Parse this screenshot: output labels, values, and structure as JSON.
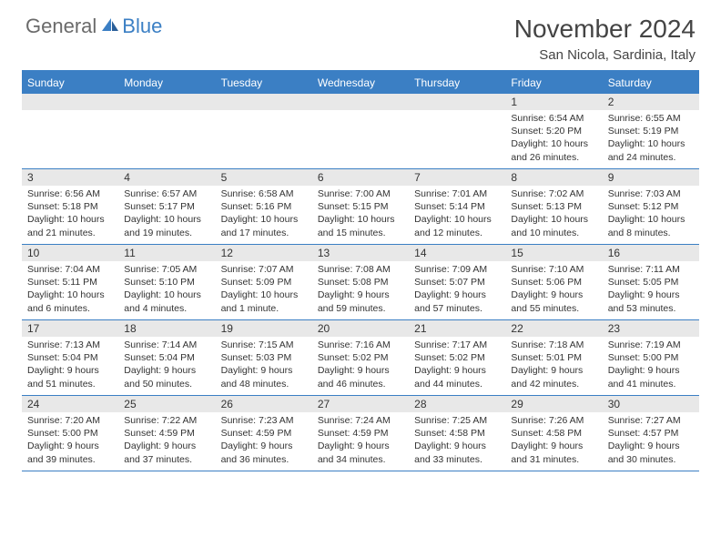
{
  "logo": {
    "general": "General",
    "blue": "Blue"
  },
  "title": "November 2024",
  "location": "San Nicola, Sardinia, Italy",
  "colors": {
    "accent": "#3b7fc4",
    "header_gray": "#e8e8e8",
    "text": "#333333",
    "logo_gray": "#6a6a6a"
  },
  "weekdays": [
    "Sunday",
    "Monday",
    "Tuesday",
    "Wednesday",
    "Thursday",
    "Friday",
    "Saturday"
  ],
  "weeks": [
    [
      {
        "n": "",
        "sr": "",
        "ss": "",
        "dl": ""
      },
      {
        "n": "",
        "sr": "",
        "ss": "",
        "dl": ""
      },
      {
        "n": "",
        "sr": "",
        "ss": "",
        "dl": ""
      },
      {
        "n": "",
        "sr": "",
        "ss": "",
        "dl": ""
      },
      {
        "n": "",
        "sr": "",
        "ss": "",
        "dl": ""
      },
      {
        "n": "1",
        "sr": "Sunrise: 6:54 AM",
        "ss": "Sunset: 5:20 PM",
        "dl": "Daylight: 10 hours and 26 minutes."
      },
      {
        "n": "2",
        "sr": "Sunrise: 6:55 AM",
        "ss": "Sunset: 5:19 PM",
        "dl": "Daylight: 10 hours and 24 minutes."
      }
    ],
    [
      {
        "n": "3",
        "sr": "Sunrise: 6:56 AM",
        "ss": "Sunset: 5:18 PM",
        "dl": "Daylight: 10 hours and 21 minutes."
      },
      {
        "n": "4",
        "sr": "Sunrise: 6:57 AM",
        "ss": "Sunset: 5:17 PM",
        "dl": "Daylight: 10 hours and 19 minutes."
      },
      {
        "n": "5",
        "sr": "Sunrise: 6:58 AM",
        "ss": "Sunset: 5:16 PM",
        "dl": "Daylight: 10 hours and 17 minutes."
      },
      {
        "n": "6",
        "sr": "Sunrise: 7:00 AM",
        "ss": "Sunset: 5:15 PM",
        "dl": "Daylight: 10 hours and 15 minutes."
      },
      {
        "n": "7",
        "sr": "Sunrise: 7:01 AM",
        "ss": "Sunset: 5:14 PM",
        "dl": "Daylight: 10 hours and 12 minutes."
      },
      {
        "n": "8",
        "sr": "Sunrise: 7:02 AM",
        "ss": "Sunset: 5:13 PM",
        "dl": "Daylight: 10 hours and 10 minutes."
      },
      {
        "n": "9",
        "sr": "Sunrise: 7:03 AM",
        "ss": "Sunset: 5:12 PM",
        "dl": "Daylight: 10 hours and 8 minutes."
      }
    ],
    [
      {
        "n": "10",
        "sr": "Sunrise: 7:04 AM",
        "ss": "Sunset: 5:11 PM",
        "dl": "Daylight: 10 hours and 6 minutes."
      },
      {
        "n": "11",
        "sr": "Sunrise: 7:05 AM",
        "ss": "Sunset: 5:10 PM",
        "dl": "Daylight: 10 hours and 4 minutes."
      },
      {
        "n": "12",
        "sr": "Sunrise: 7:07 AM",
        "ss": "Sunset: 5:09 PM",
        "dl": "Daylight: 10 hours and 1 minute."
      },
      {
        "n": "13",
        "sr": "Sunrise: 7:08 AM",
        "ss": "Sunset: 5:08 PM",
        "dl": "Daylight: 9 hours and 59 minutes."
      },
      {
        "n": "14",
        "sr": "Sunrise: 7:09 AM",
        "ss": "Sunset: 5:07 PM",
        "dl": "Daylight: 9 hours and 57 minutes."
      },
      {
        "n": "15",
        "sr": "Sunrise: 7:10 AM",
        "ss": "Sunset: 5:06 PM",
        "dl": "Daylight: 9 hours and 55 minutes."
      },
      {
        "n": "16",
        "sr": "Sunrise: 7:11 AM",
        "ss": "Sunset: 5:05 PM",
        "dl": "Daylight: 9 hours and 53 minutes."
      }
    ],
    [
      {
        "n": "17",
        "sr": "Sunrise: 7:13 AM",
        "ss": "Sunset: 5:04 PM",
        "dl": "Daylight: 9 hours and 51 minutes."
      },
      {
        "n": "18",
        "sr": "Sunrise: 7:14 AM",
        "ss": "Sunset: 5:04 PM",
        "dl": "Daylight: 9 hours and 50 minutes."
      },
      {
        "n": "19",
        "sr": "Sunrise: 7:15 AM",
        "ss": "Sunset: 5:03 PM",
        "dl": "Daylight: 9 hours and 48 minutes."
      },
      {
        "n": "20",
        "sr": "Sunrise: 7:16 AM",
        "ss": "Sunset: 5:02 PM",
        "dl": "Daylight: 9 hours and 46 minutes."
      },
      {
        "n": "21",
        "sr": "Sunrise: 7:17 AM",
        "ss": "Sunset: 5:02 PM",
        "dl": "Daylight: 9 hours and 44 minutes."
      },
      {
        "n": "22",
        "sr": "Sunrise: 7:18 AM",
        "ss": "Sunset: 5:01 PM",
        "dl": "Daylight: 9 hours and 42 minutes."
      },
      {
        "n": "23",
        "sr": "Sunrise: 7:19 AM",
        "ss": "Sunset: 5:00 PM",
        "dl": "Daylight: 9 hours and 41 minutes."
      }
    ],
    [
      {
        "n": "24",
        "sr": "Sunrise: 7:20 AM",
        "ss": "Sunset: 5:00 PM",
        "dl": "Daylight: 9 hours and 39 minutes."
      },
      {
        "n": "25",
        "sr": "Sunrise: 7:22 AM",
        "ss": "Sunset: 4:59 PM",
        "dl": "Daylight: 9 hours and 37 minutes."
      },
      {
        "n": "26",
        "sr": "Sunrise: 7:23 AM",
        "ss": "Sunset: 4:59 PM",
        "dl": "Daylight: 9 hours and 36 minutes."
      },
      {
        "n": "27",
        "sr": "Sunrise: 7:24 AM",
        "ss": "Sunset: 4:59 PM",
        "dl": "Daylight: 9 hours and 34 minutes."
      },
      {
        "n": "28",
        "sr": "Sunrise: 7:25 AM",
        "ss": "Sunset: 4:58 PM",
        "dl": "Daylight: 9 hours and 33 minutes."
      },
      {
        "n": "29",
        "sr": "Sunrise: 7:26 AM",
        "ss": "Sunset: 4:58 PM",
        "dl": "Daylight: 9 hours and 31 minutes."
      },
      {
        "n": "30",
        "sr": "Sunrise: 7:27 AM",
        "ss": "Sunset: 4:57 PM",
        "dl": "Daylight: 9 hours and 30 minutes."
      }
    ]
  ]
}
